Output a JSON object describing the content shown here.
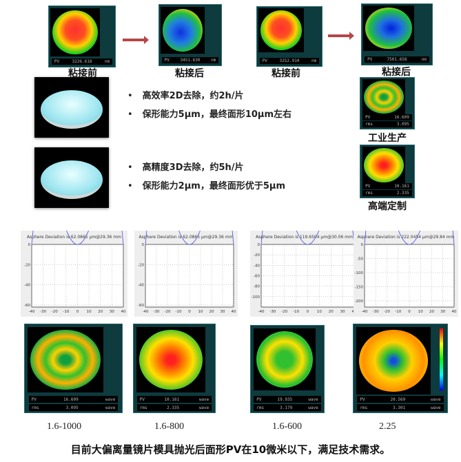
{
  "top_row": [
    {
      "caption": "粘接前",
      "pv_label": "PV",
      "pv": "3226.618",
      "unit": "nm"
    },
    {
      "caption": "粘接后",
      "pv_label": "PV",
      "pv": "3451.630",
      "unit": "nm"
    },
    {
      "caption": "粘接前",
      "pv_label": "PV",
      "pv": "3252.910",
      "unit": "nm"
    },
    {
      "caption": "粘接后",
      "pv_label": "PV",
      "pv": "7501.658",
      "unit": "nm"
    }
  ],
  "methods": [
    {
      "bullets": [
        "高效率2D去除，约2h/片",
        "保形能力5μm，最终面形10μm左右"
      ],
      "caption": "工业生产",
      "pv": "16.609",
      "rms": "3.095"
    },
    {
      "bullets": [
        "高精度3D去除，约5h/片",
        "保形能力2μm，最终面形优于5μm"
      ],
      "caption": "高端定制",
      "pv": "10.161",
      "rms": "2.335"
    }
  ],
  "chart_data": [
    {
      "type": "line",
      "title": "Asphere Deviation is 62.0865 μm@29.36 mm",
      "xlim": [
        -40,
        40
      ],
      "ylim": [
        -62,
        0
      ],
      "xticks": [
        "-40",
        "-30",
        "-20",
        "-10",
        "0",
        "10",
        "20",
        "30",
        "40"
      ],
      "yticks": [
        "0",
        "-20",
        "-40",
        "-60"
      ],
      "min": -62.09
    },
    {
      "type": "line",
      "title": "Asphere Deviation is 62.0865 μm@29.36 mm",
      "xlim": [
        -40,
        40
      ],
      "ylim": [
        -62,
        0
      ],
      "xticks": [
        "-40",
        "-30",
        "-20",
        "-10",
        "0",
        "10",
        "20",
        "30",
        "40"
      ],
      "yticks": [
        "0",
        "-20",
        "-40",
        "-60"
      ],
      "min": -62.09
    },
    {
      "type": "line",
      "title": "Asphere Deviation is 119.6504 μm@30.06 mm",
      "xlim": [
        -40,
        40
      ],
      "ylim": [
        -120,
        0
      ],
      "xticks": [
        "-40",
        "-30",
        "-20",
        "-10",
        "0",
        "10",
        "20",
        "30",
        "40"
      ],
      "yticks": [
        "0",
        "-20",
        "-40",
        "-60",
        "-80",
        "-100"
      ],
      "min": -119.65
    },
    {
      "type": "line",
      "title": "Asphere Deviation is 222.0454 μm@29.84 mm",
      "xlim": [
        -40,
        40
      ],
      "ylim": [
        -222,
        0
      ],
      "xticks": [
        "-40",
        "-30",
        "-20",
        "-10",
        "0",
        "10",
        "20",
        "30",
        "40"
      ],
      "yticks": [
        "0",
        "-50",
        "-100",
        "-150",
        "-200"
      ],
      "min": -222.05
    }
  ],
  "results": [
    {
      "pv_label": "PV",
      "pv": "16.609",
      "rms_label": "rms",
      "rms": "3.095",
      "unit": "wave",
      "label": "1.6-1000"
    },
    {
      "pv_label": "PV",
      "pv": "10.161",
      "rms_label": "rms",
      "rms": "2.335",
      "unit": "wave",
      "label": "1.6-800"
    },
    {
      "pv_label": "PV",
      "pv": "19.935",
      "rms_label": "rms",
      "rms": "3.179",
      "unit": "wave",
      "label": "1.6-600"
    },
    {
      "pv_label": "PV",
      "pv": "20.569",
      "rms_label": "rms",
      "rms": "3.301",
      "unit": "wave",
      "label": "2.25"
    }
  ],
  "footer": "目前大偏离量镜片模具抛光后面形PV在10微米以下，满足技术需求。"
}
